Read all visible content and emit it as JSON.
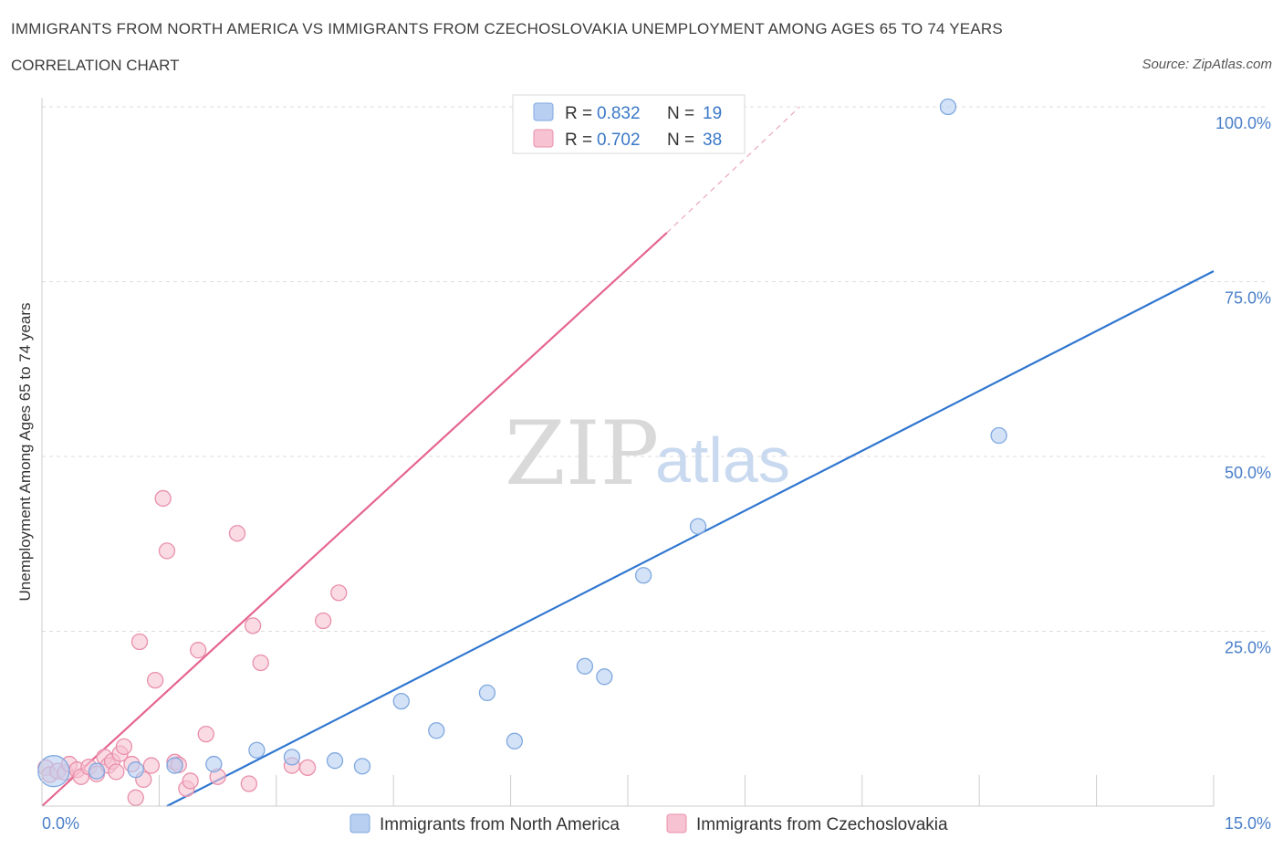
{
  "title": "IMMIGRANTS FROM NORTH AMERICA VS IMMIGRANTS FROM CZECHOSLOVAKIA UNEMPLOYMENT AMONG AGES 65 TO 74 YEARS",
  "subtitle": "CORRELATION CHART",
  "source": "Source: ZipAtlas.com",
  "watermark": {
    "zip": "ZIP",
    "atlas": "atlas"
  },
  "colors": {
    "blue_fill": "#b8cff2",
    "blue_stroke": "#7fa8df",
    "blue_line": "#2f76d0",
    "pink_fill": "#f7c3d2",
    "pink_stroke": "#e98fab",
    "pink_line": "#e5658f",
    "grid": "#dddddd",
    "tick_text": "#4a7fc9"
  },
  "legend": {
    "rows": [
      {
        "r_label": "R = ",
        "r_value": "0.832",
        "n_label": "N = ",
        "n_value": "19",
        "series": "blue"
      },
      {
        "r_label": "R = ",
        "r_value": "0.702",
        "n_label": "N = ",
        "n_value": "38",
        "series": "pink"
      }
    ]
  },
  "chart_data": {
    "type": "scatter",
    "title": "IMMIGRANTS FROM NORTH AMERICA VS IMMIGRANTS FROM CZECHOSLOVAKIA UNEMPLOYMENT AMONG AGES 65 TO 74 YEARS",
    "xlabel": "",
    "ylabel": "Unemployment Among Ages 65 to 74 years",
    "xlim": [
      0,
      15
    ],
    "ylim": [
      0,
      100
    ],
    "x_tick_labels": [
      "0.0%",
      "15.0%"
    ],
    "y_ticks": [
      25,
      50,
      75,
      100
    ],
    "y_tick_labels": [
      "25.0%",
      "50.0%",
      "75.0%",
      "100.0%"
    ],
    "grid": true,
    "legend_position": "top-center",
    "series": [
      {
        "name": "Immigrants from North America",
        "color": "blue",
        "points": [
          {
            "x": 0.15,
            "y": 5.0,
            "size": "large"
          },
          {
            "x": 0.7,
            "y": 5.0
          },
          {
            "x": 1.2,
            "y": 5.2
          },
          {
            "x": 1.7,
            "y": 5.8
          },
          {
            "x": 2.2,
            "y": 6.0
          },
          {
            "x": 2.75,
            "y": 8.0
          },
          {
            "x": 3.2,
            "y": 7.0
          },
          {
            "x": 3.75,
            "y": 6.5
          },
          {
            "x": 4.1,
            "y": 5.7
          },
          {
            "x": 4.6,
            "y": 15.0
          },
          {
            "x": 5.05,
            "y": 10.8
          },
          {
            "x": 5.7,
            "y": 16.2
          },
          {
            "x": 6.05,
            "y": 9.3
          },
          {
            "x": 6.95,
            "y": 20.0
          },
          {
            "x": 7.2,
            "y": 18.5
          },
          {
            "x": 7.7,
            "y": 33.0
          },
          {
            "x": 8.4,
            "y": 40.0
          },
          {
            "x": 11.6,
            "y": 100.0
          },
          {
            "x": 12.25,
            "y": 53.0
          }
        ],
        "trend": {
          "x0": 1.6,
          "y0": 0.0,
          "x1": 15.0,
          "y1": 76.5
        }
      },
      {
        "name": "Immigrants from Czechoslovakia",
        "color": "pink",
        "points": [
          {
            "x": 0.05,
            "y": 5.5
          },
          {
            "x": 0.1,
            "y": 4.5
          },
          {
            "x": 0.2,
            "y": 5.0
          },
          {
            "x": 0.3,
            "y": 4.8
          },
          {
            "x": 0.35,
            "y": 6.0
          },
          {
            "x": 0.45,
            "y": 5.2
          },
          {
            "x": 0.5,
            "y": 4.2
          },
          {
            "x": 0.6,
            "y": 5.6
          },
          {
            "x": 0.7,
            "y": 4.6
          },
          {
            "x": 0.8,
            "y": 7.0
          },
          {
            "x": 0.85,
            "y": 5.8
          },
          {
            "x": 0.9,
            "y": 6.4
          },
          {
            "x": 0.95,
            "y": 4.9
          },
          {
            "x": 1.0,
            "y": 7.5
          },
          {
            "x": 1.05,
            "y": 8.5
          },
          {
            "x": 1.15,
            "y": 6.0
          },
          {
            "x": 1.2,
            "y": 1.2
          },
          {
            "x": 1.25,
            "y": 23.5
          },
          {
            "x": 1.3,
            "y": 3.8
          },
          {
            "x": 1.4,
            "y": 5.8
          },
          {
            "x": 1.45,
            "y": 18.0
          },
          {
            "x": 1.55,
            "y": 44.0
          },
          {
            "x": 1.6,
            "y": 36.5
          },
          {
            "x": 1.7,
            "y": 6.3
          },
          {
            "x": 1.75,
            "y": 5.9
          },
          {
            "x": 1.85,
            "y": 2.5
          },
          {
            "x": 1.9,
            "y": 3.6
          },
          {
            "x": 2.0,
            "y": 22.3
          },
          {
            "x": 2.1,
            "y": 10.3
          },
          {
            "x": 2.25,
            "y": 4.2
          },
          {
            "x": 2.5,
            "y": 39.0
          },
          {
            "x": 2.65,
            "y": 3.2
          },
          {
            "x": 2.7,
            "y": 25.8
          },
          {
            "x": 2.8,
            "y": 20.5
          },
          {
            "x": 3.2,
            "y": 5.8
          },
          {
            "x": 3.4,
            "y": 5.5
          },
          {
            "x": 3.6,
            "y": 26.5
          },
          {
            "x": 3.8,
            "y": 30.5
          }
        ],
        "trend": {
          "x0": 0.0,
          "y0": 0.0,
          "x1": 8.0,
          "y1": 82.0
        },
        "trend_dashed_extension": {
          "x0": 8.0,
          "y0": 82.0,
          "x1": 9.7,
          "y1": 100.0
        }
      }
    ]
  }
}
